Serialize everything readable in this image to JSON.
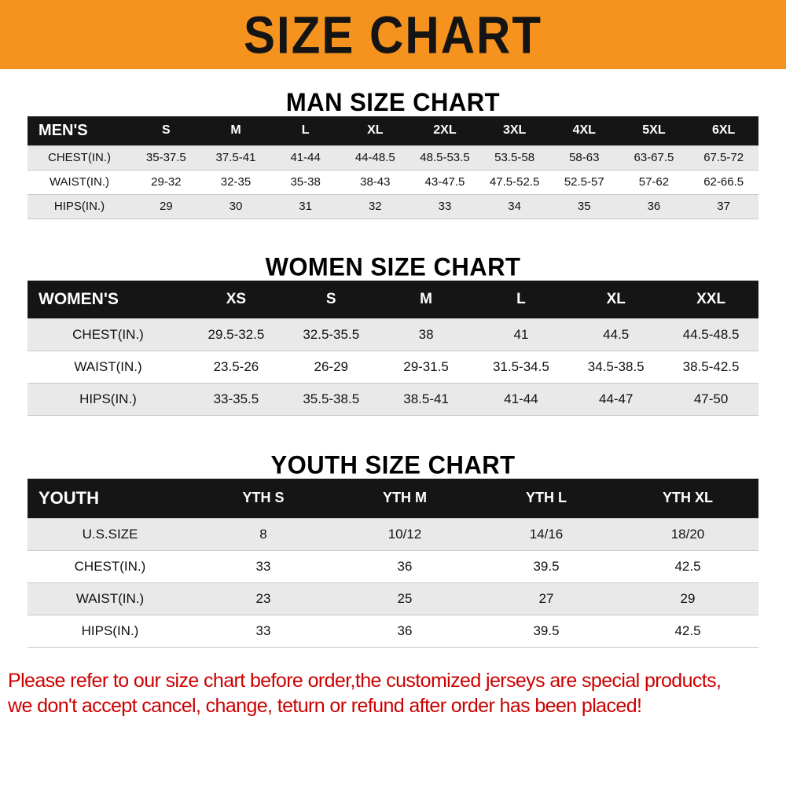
{
  "banner": {
    "title": "SIZE CHART",
    "bg_color": "#F6921E",
    "text_color": "#141414"
  },
  "sections": {
    "men": {
      "heading": "MAN SIZE CHART",
      "table": {
        "header": [
          "MEN'S",
          "S",
          "M",
          "L",
          "XL",
          "2XL",
          "3XL",
          "4XL",
          "5XL",
          "6XL"
        ],
        "rows": [
          [
            "CHEST(IN.)",
            "35-37.5",
            "37.5-41",
            "41-44",
            "44-48.5",
            "48.5-53.5",
            "53.5-58",
            "58-63",
            "63-67.5",
            "67.5-72"
          ],
          [
            "WAIST(IN.)",
            "29-32",
            "32-35",
            "35-38",
            "38-43",
            "43-47.5",
            "47.5-52.5",
            "52.5-57",
            "57-62",
            "62-66.5"
          ],
          [
            "HIPS(IN.)",
            "29",
            "30",
            "31",
            "32",
            "33",
            "34",
            "35",
            "36",
            "37"
          ]
        ]
      }
    },
    "women": {
      "heading": "WOMEN SIZE CHART",
      "table": {
        "header": [
          "WOMEN'S",
          "XS",
          "S",
          "M",
          "L",
          "XL",
          "XXL"
        ],
        "rows": [
          [
            "CHEST(IN.)",
            "29.5-32.5",
            "32.5-35.5",
            "38",
            "41",
            "44.5",
            "44.5-48.5"
          ],
          [
            "WAIST(IN.)",
            "23.5-26",
            "26-29",
            "29-31.5",
            "31.5-34.5",
            "34.5-38.5",
            "38.5-42.5"
          ],
          [
            "HIPS(IN.)",
            "33-35.5",
            "35.5-38.5",
            "38.5-41",
            "41-44",
            "44-47",
            "47-50"
          ]
        ]
      }
    },
    "youth": {
      "heading": "YOUTH SIZE CHART",
      "table": {
        "header": [
          "YOUTH",
          "YTH S",
          "YTH M",
          "YTH L",
          "YTH XL"
        ],
        "rows": [
          [
            "U.S.SIZE",
            "8",
            "10/12",
            "14/16",
            "18/20"
          ],
          [
            "CHEST(IN.)",
            "33",
            "36",
            "39.5",
            "42.5"
          ],
          [
            "WAIST(IN.)",
            "23",
            "25",
            "27",
            "29"
          ],
          [
            "HIPS(IN.)",
            "33",
            "36",
            "39.5",
            "42.5"
          ]
        ]
      }
    }
  },
  "footer": {
    "line1": "Please refer to our size chart before order,the customized jerseys are special products,",
    "line2": "we don't accept cancel, change, teturn or refund after order has been placed!",
    "text_color": "#CC0000"
  }
}
